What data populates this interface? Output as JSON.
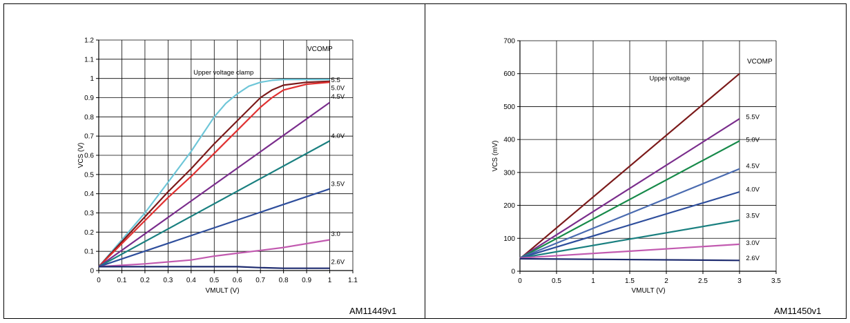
{
  "chart_data": [
    {
      "type": "line",
      "figure_id": "AM11449v1",
      "xlabel": "VMULT (V)",
      "ylabel": "VCS (V)",
      "xlim": [
        0,
        1.1
      ],
      "ylim": [
        0,
        1.2
      ],
      "xticks": [
        0,
        0.1,
        0.2,
        0.3,
        0.4,
        0.5,
        0.6,
        0.7,
        0.8,
        0.9,
        1,
        1.1
      ],
      "yticks": [
        0,
        0.1,
        0.2,
        0.3,
        0.4,
        0.5,
        0.6,
        0.7,
        0.8,
        0.9,
        1,
        1.1,
        1.2
      ],
      "grid": true,
      "annotations": [
        "VCOMP",
        "Upper voltage clamp"
      ],
      "series": [
        {
          "name": "Upper voltage clamp",
          "color": "#6ec6d8",
          "label_pos": [
            0.41,
            1.02
          ],
          "x": [
            0,
            0.1,
            0.2,
            0.3,
            0.4,
            0.5,
            0.55,
            0.6,
            0.65,
            0.7,
            0.75,
            0.8,
            0.9,
            1.0
          ],
          "y": [
            0.02,
            0.16,
            0.3,
            0.46,
            0.62,
            0.8,
            0.87,
            0.92,
            0.96,
            0.98,
            0.99,
            0.995,
            0.995,
            0.995
          ]
        },
        {
          "name": "5.5",
          "color": "#7b1a1a",
          "label_pos": [
            1.0,
            0.98
          ],
          "x": [
            0,
            0.1,
            0.2,
            0.3,
            0.4,
            0.5,
            0.6,
            0.7,
            0.75,
            0.8,
            0.9,
            1.0
          ],
          "y": [
            0.02,
            0.15,
            0.28,
            0.41,
            0.53,
            0.66,
            0.78,
            0.9,
            0.94,
            0.965,
            0.98,
            0.985
          ]
        },
        {
          "name": "5.0V",
          "color": "#e03030",
          "label_pos": [
            1.0,
            0.94
          ],
          "x": [
            0,
            0.1,
            0.2,
            0.3,
            0.4,
            0.5,
            0.6,
            0.7,
            0.75,
            0.8,
            0.9,
            1.0
          ],
          "y": [
            0.02,
            0.14,
            0.26,
            0.38,
            0.49,
            0.61,
            0.73,
            0.85,
            0.9,
            0.94,
            0.97,
            0.98
          ]
        },
        {
          "name": "4.5V",
          "color": "#7a2d8c",
          "label_pos": [
            1.0,
            0.895
          ],
          "x": [
            0,
            1.0
          ],
          "y": [
            0.02,
            0.875
          ]
        },
        {
          "name": "4.0V",
          "color": "#1a8080",
          "label_pos": [
            1.0,
            0.69
          ],
          "x": [
            0,
            1.0
          ],
          "y": [
            0.02,
            0.675
          ]
        },
        {
          "name": "3.5V",
          "color": "#2e4e9c",
          "label_pos": [
            1.0,
            0.44
          ],
          "x": [
            0,
            1.0
          ],
          "y": [
            0.02,
            0.425
          ]
        },
        {
          "name": "3.0",
          "color": "#c25ab0",
          "label_pos": [
            1.0,
            0.18
          ],
          "x": [
            0,
            0.2,
            0.4,
            0.5,
            0.6,
            0.7,
            0.8,
            0.9,
            1.0
          ],
          "y": [
            0.02,
            0.035,
            0.055,
            0.075,
            0.09,
            0.105,
            0.12,
            0.14,
            0.16
          ]
        },
        {
          "name": "2.6V",
          "color": "#1c2a6e",
          "label_pos": [
            1.0,
            0.035
          ],
          "x": [
            0,
            0.2,
            0.4,
            0.6,
            0.7,
            0.8,
            1.0
          ],
          "y": [
            0.02,
            0.02,
            0.02,
            0.02,
            0.015,
            0.012,
            0.012
          ]
        }
      ]
    },
    {
      "type": "line",
      "figure_id": "AM11450v1",
      "xlabel": "VMULT (V)",
      "ylabel": "VCS (mV)",
      "xlim": [
        0,
        3.5
      ],
      "ylim": [
        0,
        700
      ],
      "xticks": [
        0,
        0.5,
        1,
        1.5,
        2,
        2.5,
        3,
        3.5
      ],
      "yticks": [
        0,
        100,
        200,
        300,
        400,
        500,
        600,
        700
      ],
      "grid": true,
      "annotations": [
        "VCOMP",
        "Upper voltage"
      ],
      "series": [
        {
          "name": "Upper voltage",
          "color": "#7b1a1a",
          "label_pos": [
            1.75,
            580
          ],
          "x": [
            0,
            3
          ],
          "y": [
            38,
            600
          ]
        },
        {
          "name": "5.5V",
          "color": "#7a2d8c",
          "label_pos": [
            3.07,
            462
          ],
          "x": [
            0,
            3
          ],
          "y": [
            40,
            463
          ]
        },
        {
          "name": "5.0V",
          "color": "#178a4a",
          "label_pos": [
            3.07,
            393
          ],
          "x": [
            0,
            3
          ],
          "y": [
            40,
            396
          ]
        },
        {
          "name": "4.5V",
          "color": "#4a6bb0",
          "label_pos": [
            3.07,
            313
          ],
          "x": [
            0,
            3
          ],
          "y": [
            40,
            311
          ]
        },
        {
          "name": "4.0V",
          "color": "#2e4e9c",
          "label_pos": [
            3.07,
            242
          ],
          "x": [
            0,
            3
          ],
          "y": [
            40,
            241
          ]
        },
        {
          "name": "3.5V",
          "color": "#1a8080",
          "label_pos": [
            3.07,
            162
          ],
          "x": [
            0,
            3
          ],
          "y": [
            40,
            155
          ]
        },
        {
          "name": "3.0V",
          "color": "#c25ab0",
          "label_pos": [
            3.07,
            80
          ],
          "x": [
            0,
            3
          ],
          "y": [
            40,
            82
          ]
        },
        {
          "name": "2.6V",
          "color": "#1c2a6e",
          "label_pos": [
            3.07,
            34
          ],
          "x": [
            0,
            3
          ],
          "y": [
            38,
            33
          ]
        }
      ]
    }
  ]
}
